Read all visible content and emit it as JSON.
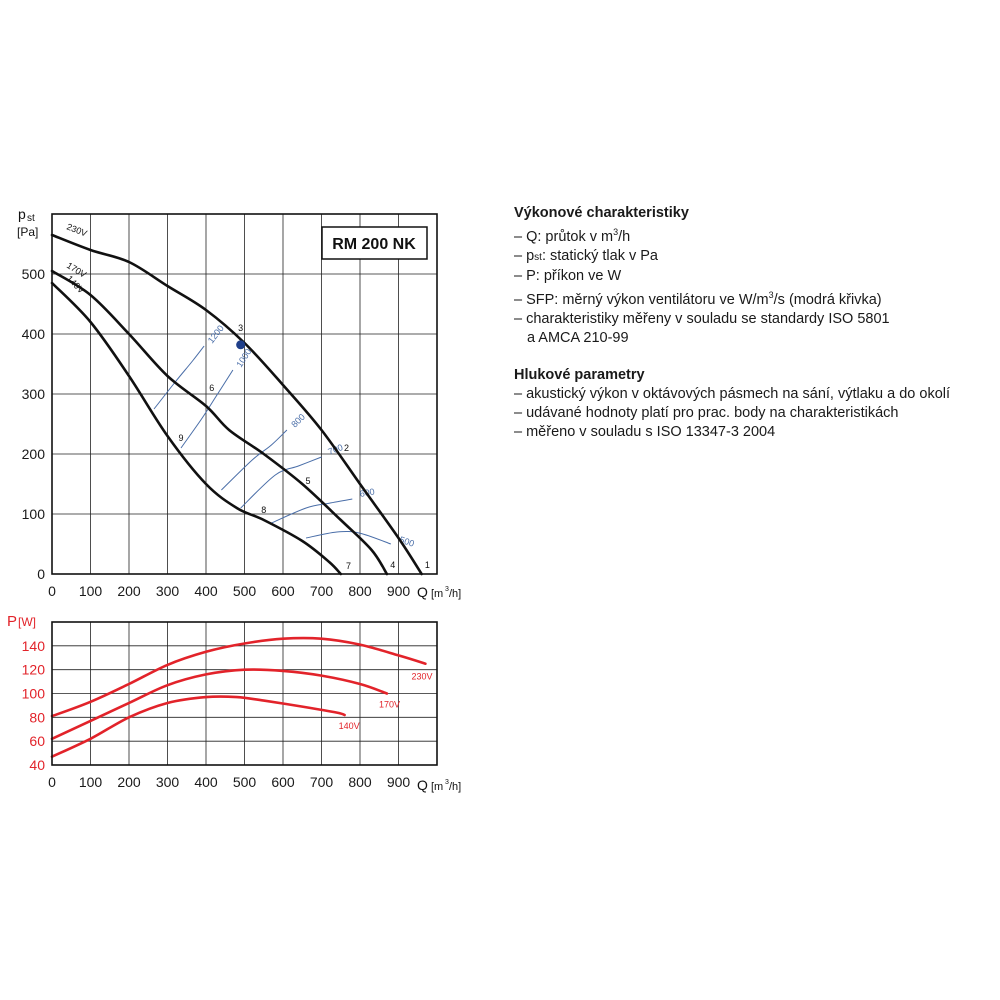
{
  "chart_data": [
    {
      "type": "line",
      "title": "RM 200 NK",
      "ylabel_symbol": "p",
      "ylabel_sub": "st",
      "ylabel_unit": "[Pa]",
      "xlabel": "Q",
      "xlabel_unit_pre": "[m",
      "xlabel_unit_sup": "3",
      "xlabel_unit_post": "/h]",
      "xlim": [
        0,
        1000
      ],
      "ylim": [
        0,
        600
      ],
      "xticks": [
        0,
        100,
        200,
        300,
        400,
        500,
        600,
        700,
        800,
        900
      ],
      "yticks": [
        0,
        100,
        200,
        300,
        400,
        500
      ],
      "grid": true,
      "series": [
        {
          "name": "230V",
          "color": "#111111",
          "points": [
            [
              0,
              565
            ],
            [
              100,
              540
            ],
            [
              200,
              520
            ],
            [
              300,
              480
            ],
            [
              400,
              440
            ],
            [
              500,
              385
            ],
            [
              600,
              315
            ],
            [
              700,
              240
            ],
            [
              800,
              150
            ],
            [
              900,
              60
            ],
            [
              960,
              0
            ]
          ]
        },
        {
          "name": "170V",
          "color": "#111111",
          "points": [
            [
              0,
              505
            ],
            [
              100,
              465
            ],
            [
              200,
              400
            ],
            [
              300,
              330
            ],
            [
              400,
              280
            ],
            [
              460,
              240
            ],
            [
              550,
              200
            ],
            [
              650,
              150
            ],
            [
              750,
              90
            ],
            [
              830,
              40
            ],
            [
              870,
              0
            ]
          ]
        },
        {
          "name": "140V",
          "color": "#111111",
          "points": [
            [
              0,
              485
            ],
            [
              100,
              420
            ],
            [
              200,
              330
            ],
            [
              300,
              230
            ],
            [
              400,
              150
            ],
            [
              480,
              110
            ],
            [
              550,
              90
            ],
            [
              650,
              55
            ],
            [
              720,
              20
            ],
            [
              750,
              0
            ]
          ]
        }
      ],
      "sfp_curves": [
        {
          "label": "1200",
          "color": "#4a6ea8",
          "points": [
            [
              265,
              275
            ],
            [
              320,
              320
            ],
            [
              365,
              355
            ],
            [
              395,
              380
            ]
          ]
        },
        {
          "label": "1000",
          "color": "#4a6ea8",
          "points": [
            [
              335,
              210
            ],
            [
              390,
              260
            ],
            [
              430,
              300
            ],
            [
              470,
              340
            ]
          ]
        },
        {
          "label": "800",
          "color": "#4a6ea8",
          "points": [
            [
              440,
              140
            ],
            [
              520,
              190
            ],
            [
              570,
              215
            ],
            [
              610,
              240
            ]
          ]
        },
        {
          "label": "700",
          "color": "#4a6ea8",
          "points": [
            [
              490,
              110
            ],
            [
              580,
              165
            ],
            [
              640,
              180
            ],
            [
              700,
              195
            ]
          ]
        },
        {
          "label": "600",
          "color": "#4a6ea8",
          "points": [
            [
              570,
              85
            ],
            [
              660,
              110
            ],
            [
              720,
              118
            ],
            [
              780,
              125
            ]
          ]
        },
        {
          "label": "500",
          "color": "#4a6ea8",
          "points": [
            [
              660,
              60
            ],
            [
              740,
              70
            ],
            [
              800,
              68
            ],
            [
              880,
              50
            ]
          ]
        }
      ],
      "points_labels": [
        {
          "label": "1",
          "x": 975,
          "y": 10
        },
        {
          "label": "2",
          "x": 765,
          "y": 205
        },
        {
          "label": "3",
          "x": 490,
          "y": 405
        },
        {
          "label": "4",
          "x": 885,
          "y": 10
        },
        {
          "label": "5",
          "x": 665,
          "y": 150
        },
        {
          "label": "6",
          "x": 415,
          "y": 305
        },
        {
          "label": "7",
          "x": 770,
          "y": 8
        },
        {
          "label": "8",
          "x": 550,
          "y": 102
        },
        {
          "label": "9",
          "x": 335,
          "y": 222
        }
      ],
      "marker": {
        "x": 490,
        "y": 382,
        "color": "#1f3f8a"
      }
    },
    {
      "type": "line",
      "ylabel": "P",
      "ylabel_unit": "[W]",
      "xlabel": "Q",
      "xlabel_unit_pre": "[m",
      "xlabel_unit_sup": "3",
      "xlabel_unit_post": "/h]",
      "xlim": [
        0,
        1000
      ],
      "ylim": [
        40,
        160
      ],
      "xticks": [
        0,
        100,
        200,
        300,
        400,
        500,
        600,
        700,
        800,
        900
      ],
      "yticks": [
        40,
        60,
        80,
        100,
        120,
        140
      ],
      "grid": true,
      "series": [
        {
          "name": "230V",
          "color": "#e2232a",
          "points": [
            [
              0,
              81
            ],
            [
              100,
              93
            ],
            [
              200,
              108
            ],
            [
              300,
              124
            ],
            [
              400,
              135
            ],
            [
              500,
              142
            ],
            [
              600,
              146
            ],
            [
              700,
              146
            ],
            [
              800,
              141
            ],
            [
              900,
              132
            ],
            [
              970,
              125
            ]
          ]
        },
        {
          "name": "170V",
          "color": "#e2232a",
          "points": [
            [
              0,
              62
            ],
            [
              100,
              77
            ],
            [
              200,
              92
            ],
            [
              300,
              107
            ],
            [
              400,
              116
            ],
            [
              500,
              120
            ],
            [
              600,
              119
            ],
            [
              700,
              115
            ],
            [
              800,
              108
            ],
            [
              870,
              100
            ]
          ]
        },
        {
          "name": "140V",
          "color": "#e2232a",
          "points": [
            [
              0,
              47
            ],
            [
              100,
              62
            ],
            [
              200,
              80
            ],
            [
              300,
              92
            ],
            [
              400,
              97
            ],
            [
              480,
              97
            ],
            [
              550,
              94
            ],
            [
              650,
              89
            ],
            [
              740,
              84
            ],
            [
              760,
              82
            ]
          ]
        }
      ]
    }
  ],
  "info": {
    "heading1": "Výkonové charakteristiky",
    "item_q_pre": "– Q: průtok v m",
    "item_q_sup": "3",
    "item_q_post": "/h",
    "item_p_pre": "– p",
    "item_p_sub": "st",
    "item_p_post": ": statický tlak v Pa",
    "item_power": "– P: příkon ve W",
    "item_sfp_pre": "– SFP: měrný výkon ventilátoru ve W/m",
    "item_sfp_sup": "3",
    "item_sfp_post": "/s (modrá křivka)",
    "item_iso1": "– charakteristiky měřeny v souladu se standardy ISO 5801",
    "item_iso2": "a AMCA 210-99",
    "heading2": "Hlukové parametry",
    "item_n1": "– akustický výkon v oktávových pásmech na sání, výtlaku a do okolí",
    "item_n2": "– udávané hodnoty platí pro prac. body na charakteristikách",
    "item_n3": "– měřeno v souladu s ISO 13347-3 2004"
  }
}
